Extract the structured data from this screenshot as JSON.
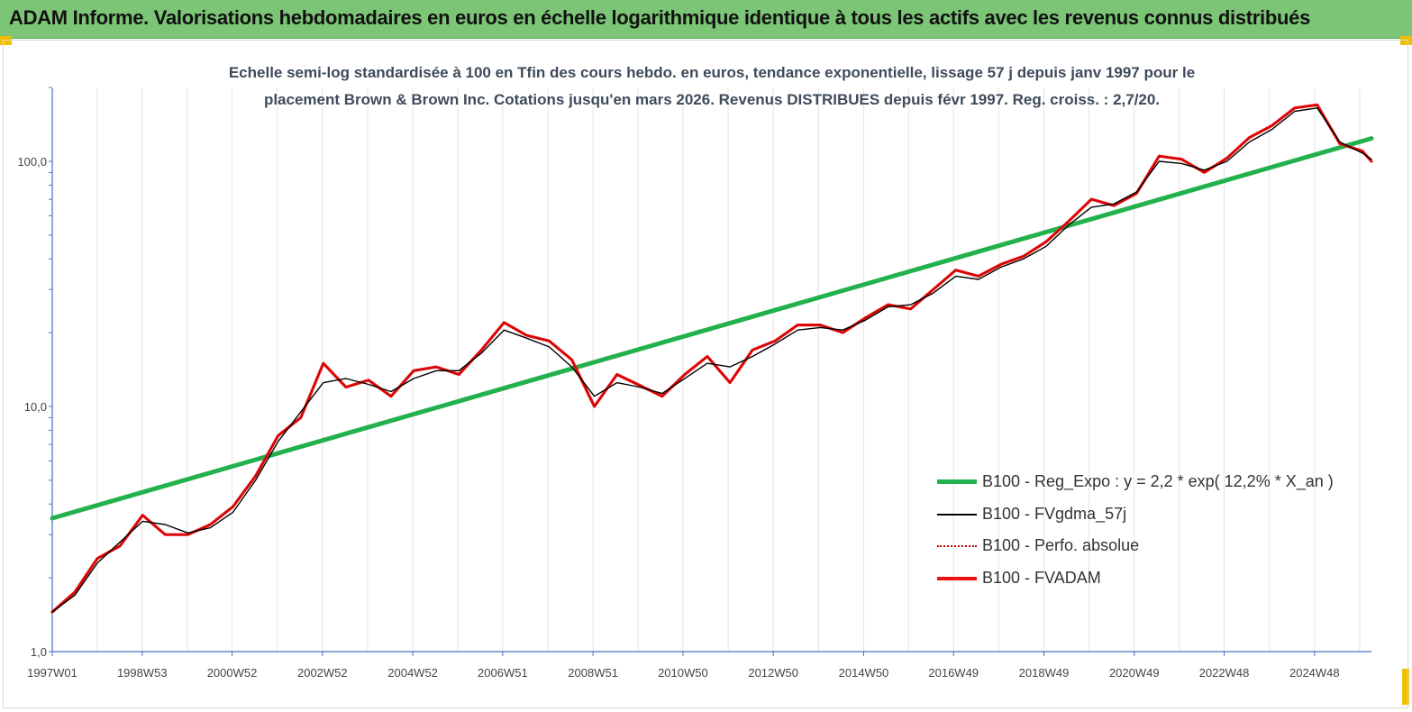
{
  "banner": {
    "title": "ADAM Informe. Valorisations hebdomadaires en euros en échelle logarithmique identique à tous les actifs avec les revenus connus distribués",
    "color": "#7cc576"
  },
  "chart_data": {
    "type": "line",
    "title_line1": "Echelle semi-log standardisée à 100 en Tfin des cours hebdo. en euros, tendance exponentielle, lissage 57 j depuis janv 1997 pour le",
    "title_line2": "placement Brown & Brown Inc. Cotations jusqu'en mars 2026. Revenus DISTRIBUES depuis févr 1997. Reg. croiss. : 2,7/20.",
    "y_scale": "log",
    "ylim": [
      1,
      200
    ],
    "xlim": [
      1997.0,
      2026.2
    ],
    "y_ticks": [
      {
        "value": 1,
        "label": "1,0"
      },
      {
        "value": 10,
        "label": "10,0"
      },
      {
        "value": 100,
        "label": "100,0"
      }
    ],
    "x_ticks": [
      {
        "value": 1997.0,
        "label": "1997W01"
      },
      {
        "value": 1998.99,
        "label": "1998W53"
      },
      {
        "value": 2000.98,
        "label": "2000W52"
      },
      {
        "value": 2002.98,
        "label": "2002W52"
      },
      {
        "value": 2004.98,
        "label": "2004W52"
      },
      {
        "value": 2006.97,
        "label": "2006W51"
      },
      {
        "value": 2008.97,
        "label": "2008W51"
      },
      {
        "value": 2010.96,
        "label": "2010W50"
      },
      {
        "value": 2012.96,
        "label": "2012W50"
      },
      {
        "value": 2014.96,
        "label": "2014W50"
      },
      {
        "value": 2016.95,
        "label": "2016W49"
      },
      {
        "value": 2018.95,
        "label": "2018W49"
      },
      {
        "value": 2020.95,
        "label": "2020W49"
      },
      {
        "value": 2022.94,
        "label": "2022W48"
      },
      {
        "value": 2024.94,
        "label": "2024W48"
      }
    ],
    "grid": "vertical",
    "legend_position": "right",
    "series": [
      {
        "name": "B100 - Reg_Expo : y = 2,2 * exp( 12,2% *  X_an )",
        "color": "#22b14c",
        "style": "thick",
        "x": [
          1997.0,
          2026.2
        ],
        "y": [
          3.5,
          124
        ]
      },
      {
        "name": "B100 - FVgdma_57j",
        "color": "#000000",
        "style": "thin",
        "x": [
          1997.0,
          1997.5,
          1998.0,
          1998.5,
          1999.0,
          1999.5,
          2000.0,
          2000.5,
          2001.0,
          2001.5,
          2002.0,
          2002.5,
          2003.0,
          2003.5,
          2004.0,
          2004.5,
          2005.0,
          2005.5,
          2006.0,
          2006.5,
          2007.0,
          2007.5,
          2008.0,
          2008.5,
          2009.0,
          2009.5,
          2010.0,
          2010.5,
          2011.0,
          2011.5,
          2012.0,
          2012.5,
          2013.0,
          2013.5,
          2014.0,
          2014.5,
          2015.0,
          2015.5,
          2016.0,
          2016.5,
          2017.0,
          2017.5,
          2018.0,
          2018.5,
          2019.0,
          2019.5,
          2020.0,
          2020.5,
          2021.0,
          2021.5,
          2022.0,
          2022.5,
          2023.0,
          2023.5,
          2024.0,
          2024.5,
          2025.0,
          2025.5,
          2026.0,
          2026.2
        ],
        "y": [
          1.45,
          1.7,
          2.3,
          2.8,
          3.4,
          3.3,
          3.05,
          3.2,
          3.7,
          5.0,
          7.2,
          9.5,
          12.5,
          13.0,
          12.3,
          11.5,
          13.0,
          14.0,
          14.0,
          16.5,
          20.5,
          19.0,
          17.5,
          14.5,
          11.0,
          12.5,
          12.0,
          11.3,
          13.0,
          15.0,
          14.5,
          16.0,
          18.0,
          20.5,
          21.0,
          20.5,
          22.5,
          25.5,
          26.0,
          29.0,
          34.0,
          33.0,
          37.0,
          40.0,
          45.0,
          55.0,
          65.0,
          67.0,
          75.0,
          100.0,
          98.0,
          92.0,
          100.0,
          120.0,
          135.0,
          160.0,
          165.0,
          120.0,
          108.0,
          102.0
        ]
      },
      {
        "name": "B100 - Perfo. absolue",
        "color": "#c00000",
        "style": "dotted",
        "x": [
          1997.0,
          1997.5,
          1998.0,
          1998.5,
          1999.0,
          1999.5,
          2000.0,
          2000.5,
          2001.0,
          2001.5,
          2002.0,
          2002.5,
          2003.0,
          2003.5,
          2004.0,
          2004.5,
          2005.0,
          2005.5,
          2006.0,
          2006.5,
          2007.0,
          2007.5,
          2008.0,
          2008.5,
          2009.0,
          2009.5,
          2010.0,
          2010.5,
          2011.0,
          2011.5,
          2012.0,
          2012.5,
          2013.0,
          2013.5,
          2014.0,
          2014.5,
          2015.0,
          2015.5,
          2016.0,
          2016.5,
          2017.0,
          2017.5,
          2018.0,
          2018.5,
          2019.0,
          2019.5,
          2020.0,
          2020.5,
          2021.0,
          2021.5,
          2022.0,
          2022.5,
          2023.0,
          2023.5,
          2024.0,
          2024.5,
          2025.0,
          2025.5,
          2026.0,
          2026.2
        ],
        "y": [
          1.45,
          1.75,
          2.4,
          2.7,
          3.6,
          3.0,
          3.0,
          3.3,
          3.9,
          5.2,
          7.6,
          9.0,
          15.0,
          12.0,
          12.8,
          11.0,
          14.0,
          14.5,
          13.5,
          17.0,
          22.0,
          19.5,
          18.5,
          15.5,
          10.0,
          13.5,
          12.2,
          11.0,
          13.5,
          16.0,
          12.5,
          17.0,
          18.5,
          21.5,
          21.5,
          20.0,
          23.0,
          26.0,
          25.0,
          30.0,
          36.0,
          34.0,
          38.0,
          41.0,
          47.0,
          57.0,
          70.0,
          66.0,
          74.0,
          105.0,
          102.0,
          90.0,
          103.0,
          125.0,
          140.0,
          165.0,
          170.0,
          118.0,
          110.0,
          100.0
        ]
      },
      {
        "name": "B100 - FVADAM",
        "color": "#ee1111",
        "style": "thick",
        "x": [
          1997.0,
          1997.5,
          1998.0,
          1998.5,
          1999.0,
          1999.5,
          2000.0,
          2000.5,
          2001.0,
          2001.5,
          2002.0,
          2002.5,
          2003.0,
          2003.5,
          2004.0,
          2004.5,
          2005.0,
          2005.5,
          2006.0,
          2006.5,
          2007.0,
          2007.5,
          2008.0,
          2008.5,
          2009.0,
          2009.5,
          2010.0,
          2010.5,
          2011.0,
          2011.5,
          2012.0,
          2012.5,
          2013.0,
          2013.5,
          2014.0,
          2014.5,
          2015.0,
          2015.5,
          2016.0,
          2016.5,
          2017.0,
          2017.5,
          2018.0,
          2018.5,
          2019.0,
          2019.5,
          2020.0,
          2020.5,
          2021.0,
          2021.5,
          2022.0,
          2022.5,
          2023.0,
          2023.5,
          2024.0,
          2024.5,
          2025.0,
          2025.5,
          2026.0,
          2026.2
        ],
        "y": [
          1.45,
          1.75,
          2.4,
          2.7,
          3.6,
          3.0,
          3.0,
          3.3,
          3.9,
          5.2,
          7.6,
          9.0,
          15.0,
          12.0,
          12.8,
          11.0,
          14.0,
          14.5,
          13.5,
          17.0,
          22.0,
          19.5,
          18.5,
          15.5,
          10.0,
          13.5,
          12.2,
          11.0,
          13.5,
          16.0,
          12.5,
          17.0,
          18.5,
          21.5,
          21.5,
          20.0,
          23.0,
          26.0,
          25.0,
          30.0,
          36.0,
          34.0,
          38.0,
          41.0,
          47.0,
          57.0,
          70.0,
          66.0,
          74.0,
          105.0,
          102.0,
          90.0,
          103.0,
          125.0,
          140.0,
          165.0,
          170.0,
          118.0,
          110.0,
          100.0
        ]
      }
    ]
  }
}
